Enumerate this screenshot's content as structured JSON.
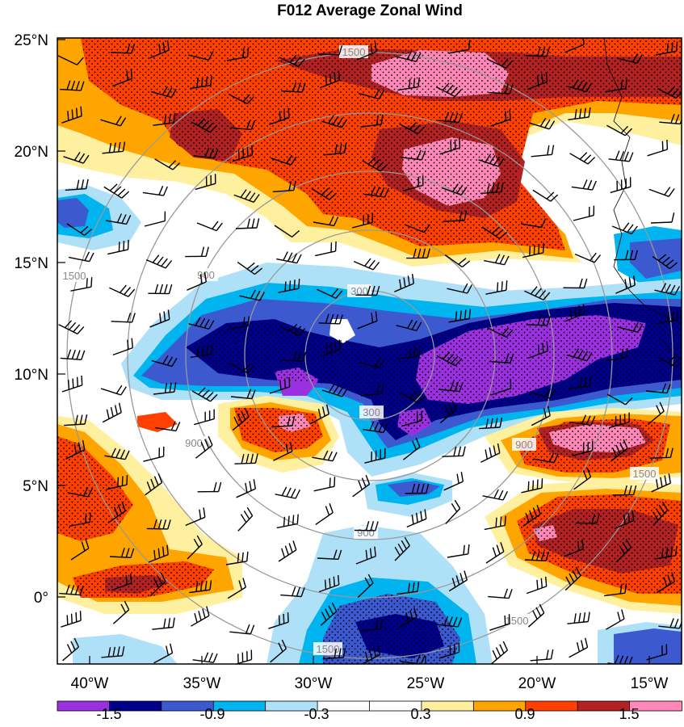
{
  "title": "F012 Average Zonal Wind",
  "lat_labels": [
    "25°N",
    "20°N",
    "15°N",
    "10°N",
    "5°N",
    "0°"
  ],
  "lon_labels": [
    "40°W",
    "35°W",
    "30°W",
    "25°W",
    "20°W",
    "15°W"
  ],
  "colorbar": {
    "colors": [
      "#9b30e0",
      "#00008b",
      "#3c59d0",
      "#00b4f0",
      "#aee0f8",
      "#ffffff",
      "#ffffff",
      "#fff0a0",
      "#ffa500",
      "#ff4000",
      "#b22222",
      "#ff88b8"
    ],
    "labels": [
      "-1.5",
      "-0.9",
      "-0.3",
      "0.3",
      "0.9",
      "1.5"
    ]
  },
  "range_rings": {
    "labels": [
      "300",
      "900",
      "1500"
    ]
  }
}
